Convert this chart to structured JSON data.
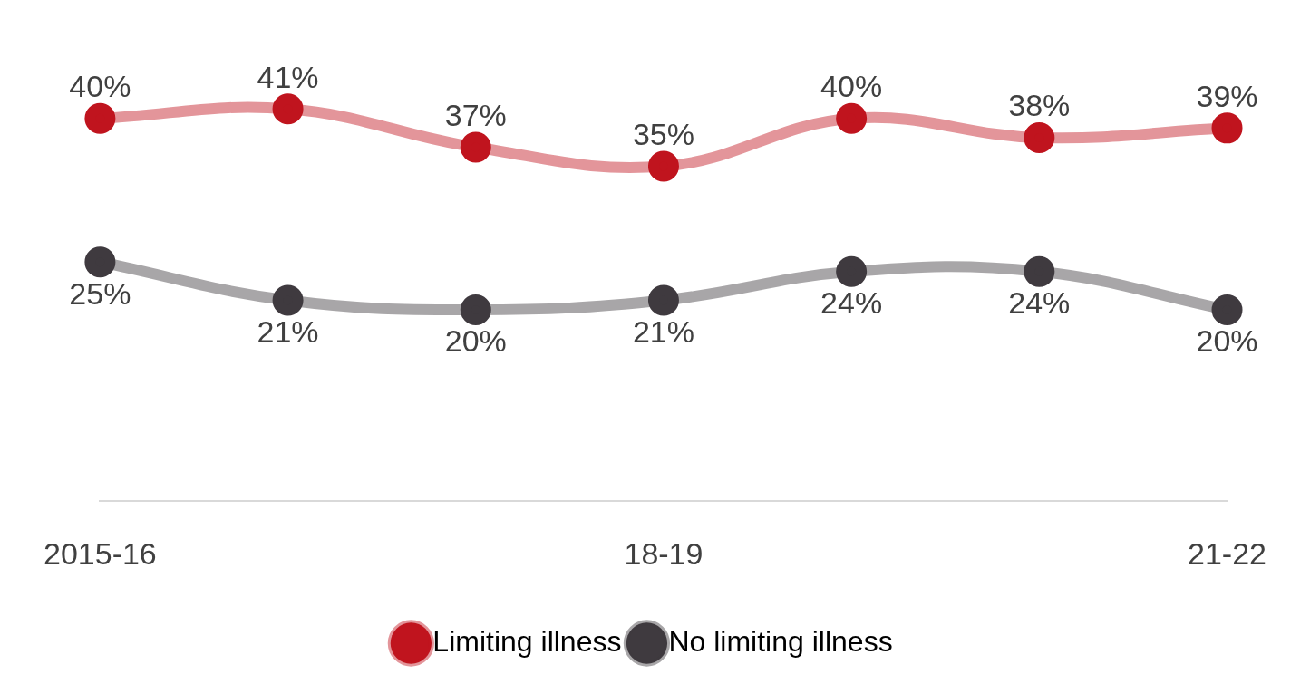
{
  "chart_data": {
    "type": "line",
    "categories": [
      "2015-16",
      null,
      null,
      "18-19",
      null,
      null,
      "21-22"
    ],
    "series": [
      {
        "name": "Limiting illness",
        "color": "#c0141e",
        "values": [
          40,
          41,
          37,
          35,
          40,
          38,
          39
        ],
        "value_labels": [
          "40%",
          "41%",
          "37%",
          "35%",
          "40%",
          "38%",
          "39%"
        ]
      },
      {
        "name": "No limiting illness",
        "color": "#3f3a3f",
        "values": [
          25,
          21,
          20,
          21,
          24,
          24,
          20
        ],
        "value_labels": [
          "25%",
          "21%",
          "20%",
          "21%",
          "24%",
          "24%",
          "20%"
        ]
      }
    ],
    "tick_labels": "x",
    "grid": false,
    "legend": "bottom",
    "marker": "circle",
    "line_style": "solid"
  }
}
